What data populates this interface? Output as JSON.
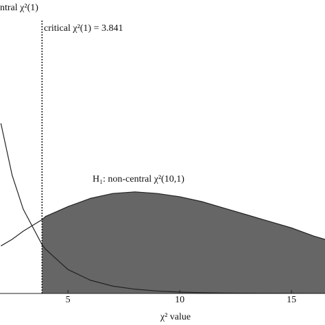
{
  "chart_data": {
    "type": "line",
    "x_label": "χ² value",
    "x": [
      2,
      2.5,
      3,
      3.841,
      4,
      5,
      6,
      7,
      8,
      9,
      10,
      11,
      12,
      13,
      14,
      15,
      16,
      16.5
    ],
    "series": [
      {
        "name": "ntral χ²(1)",
        "color": "#222222",
        "values": [
          0.1038,
          0.0723,
          0.0514,
          0.0298,
          0.027,
          0.0146,
          0.0081,
          0.0045,
          0.0026,
          0.0015,
          0.00085,
          0.0005,
          0.00029,
          0.00017,
          0.0001,
          6e-05,
          3e-05,
          3e-05
        ]
      },
      {
        "name": "H₁: non-central χ²(10,1)",
        "color": "#222222",
        "fill": "#666666",
        "values": [
          0.029,
          0.033,
          0.038,
          0.045,
          0.047,
          0.053,
          0.058,
          0.061,
          0.062,
          0.061,
          0.059,
          0.056,
          0.052,
          0.048,
          0.044,
          0.04,
          0.035,
          0.033
        ]
      }
    ],
    "critical_value": 3.841,
    "critical_label": "critical χ²(1) = 3.841",
    "xlim": [
      1.96,
      16.5
    ],
    "ylim": [
      0,
      0.105
    ],
    "xticks": [
      5,
      10,
      15
    ]
  }
}
